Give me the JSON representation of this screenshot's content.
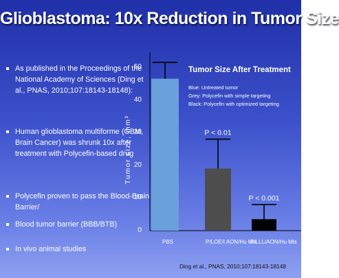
{
  "slide": {
    "title": "Glioblastoma: 10x Reduction in Tumor Size",
    "citation": "Ding et al., PNAS, 2010;107:18143-18148",
    "bullets": [
      {
        "text": "As published in the Proceedings of the National Academy of Sciences (Ding et al., PNAS, 2010;107:18143-18148):"
      },
      {
        "text": "Human glioblastoma multiforme (GBM, Brain Cancer) was shrunk 10x after treatment with Polycefin-based drug"
      },
      {
        "text": "Polycefin proven to pass the Blood-Brain Barrier/"
      },
      {
        "text": "Blood tumor barrier (BBB/BTB)"
      },
      {
        "text": "In vivo animal studies"
      }
    ],
    "colors": {
      "background_top": "#1f2fa8",
      "background_bottom": "#8ea0f2",
      "bar_blue": "#6aa0dc",
      "bar_grey": "#4d4d4d",
      "bar_black": "#000000"
    }
  },
  "chart_data": {
    "type": "bar",
    "title": "Tumor Size After Treatment",
    "ylabel": "Tumor size, mm³",
    "xlabel": "",
    "ylim": [
      0,
      55
    ],
    "yticks": [
      0,
      10,
      20,
      30,
      40,
      50
    ],
    "categories": [
      "PBS",
      "P/LOE/I AON/Hu Mls",
      "P/LLL/AON/Hu Mls"
    ],
    "values": [
      46.5,
      19,
      3.5
    ],
    "error_upper": [
      51.5,
      28,
      8
    ],
    "colors": [
      "#6aa0dc",
      "#4d4d4d",
      "#000000"
    ],
    "annotations": [
      "",
      "P < 0.01",
      "P < 0.001"
    ],
    "legend": [
      "Blue: Untreated tumor",
      "Grey: Polycefin with simple targeting",
      "Black: Polycefin with optimized targeting"
    ],
    "grid": false,
    "legend_position": "top-right"
  }
}
